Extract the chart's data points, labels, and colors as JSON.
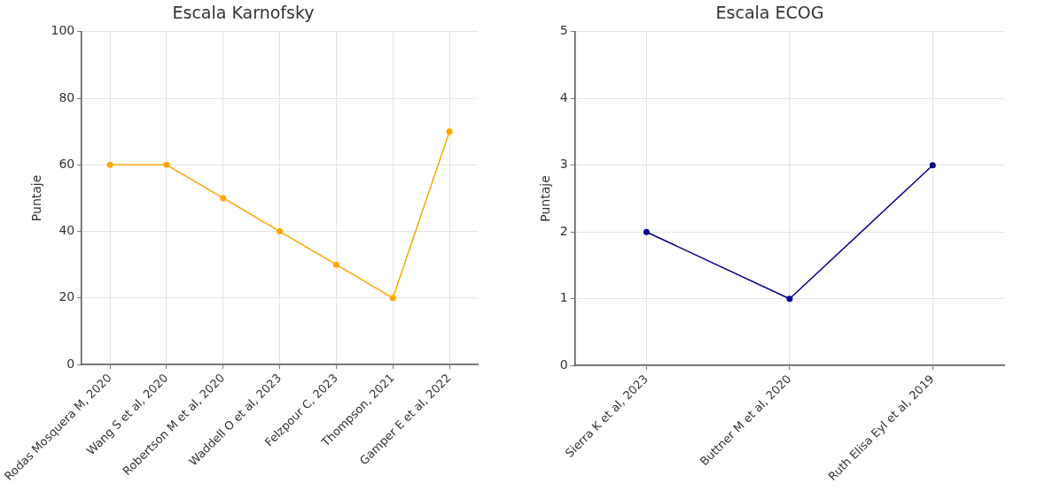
{
  "chart_data": [
    {
      "type": "line",
      "title": "Escala Karnofsky",
      "ylabel": "Puntaje",
      "categories": [
        "Rodas Mosquera M, 2020",
        "Wang S et al, 2020",
        "Robertson M et al, 2020",
        "Waddell O et al, 2023",
        "Felzpour C, 2023",
        "Thompson, 2021",
        "Gamper E et al, 2022"
      ],
      "series": [
        {
          "color": "#ffa500",
          "values": [
            60,
            60,
            50,
            40,
            30,
            20,
            70
          ]
        }
      ],
      "ylim": [
        0,
        100
      ],
      "yticks": [
        0,
        20,
        40,
        60,
        80,
        100
      ],
      "grid": true,
      "legend": false,
      "marker": "circle",
      "line_style": "solid"
    },
    {
      "type": "line",
      "title": "Escala ECOG",
      "ylabel": "Puntaje",
      "categories": [
        "Sierra K et al, 2023",
        "Buttner M et al, 2020",
        "Ruth Elisa Eyl et al, 2019"
      ],
      "series": [
        {
          "color": "#00008b",
          "values": [
            2,
            1,
            3
          ]
        }
      ],
      "ylim": [
        0,
        5
      ],
      "yticks": [
        0,
        1,
        2,
        3,
        4,
        5
      ],
      "grid": true,
      "legend": false,
      "marker": "circle",
      "line_style": "solid"
    }
  ]
}
